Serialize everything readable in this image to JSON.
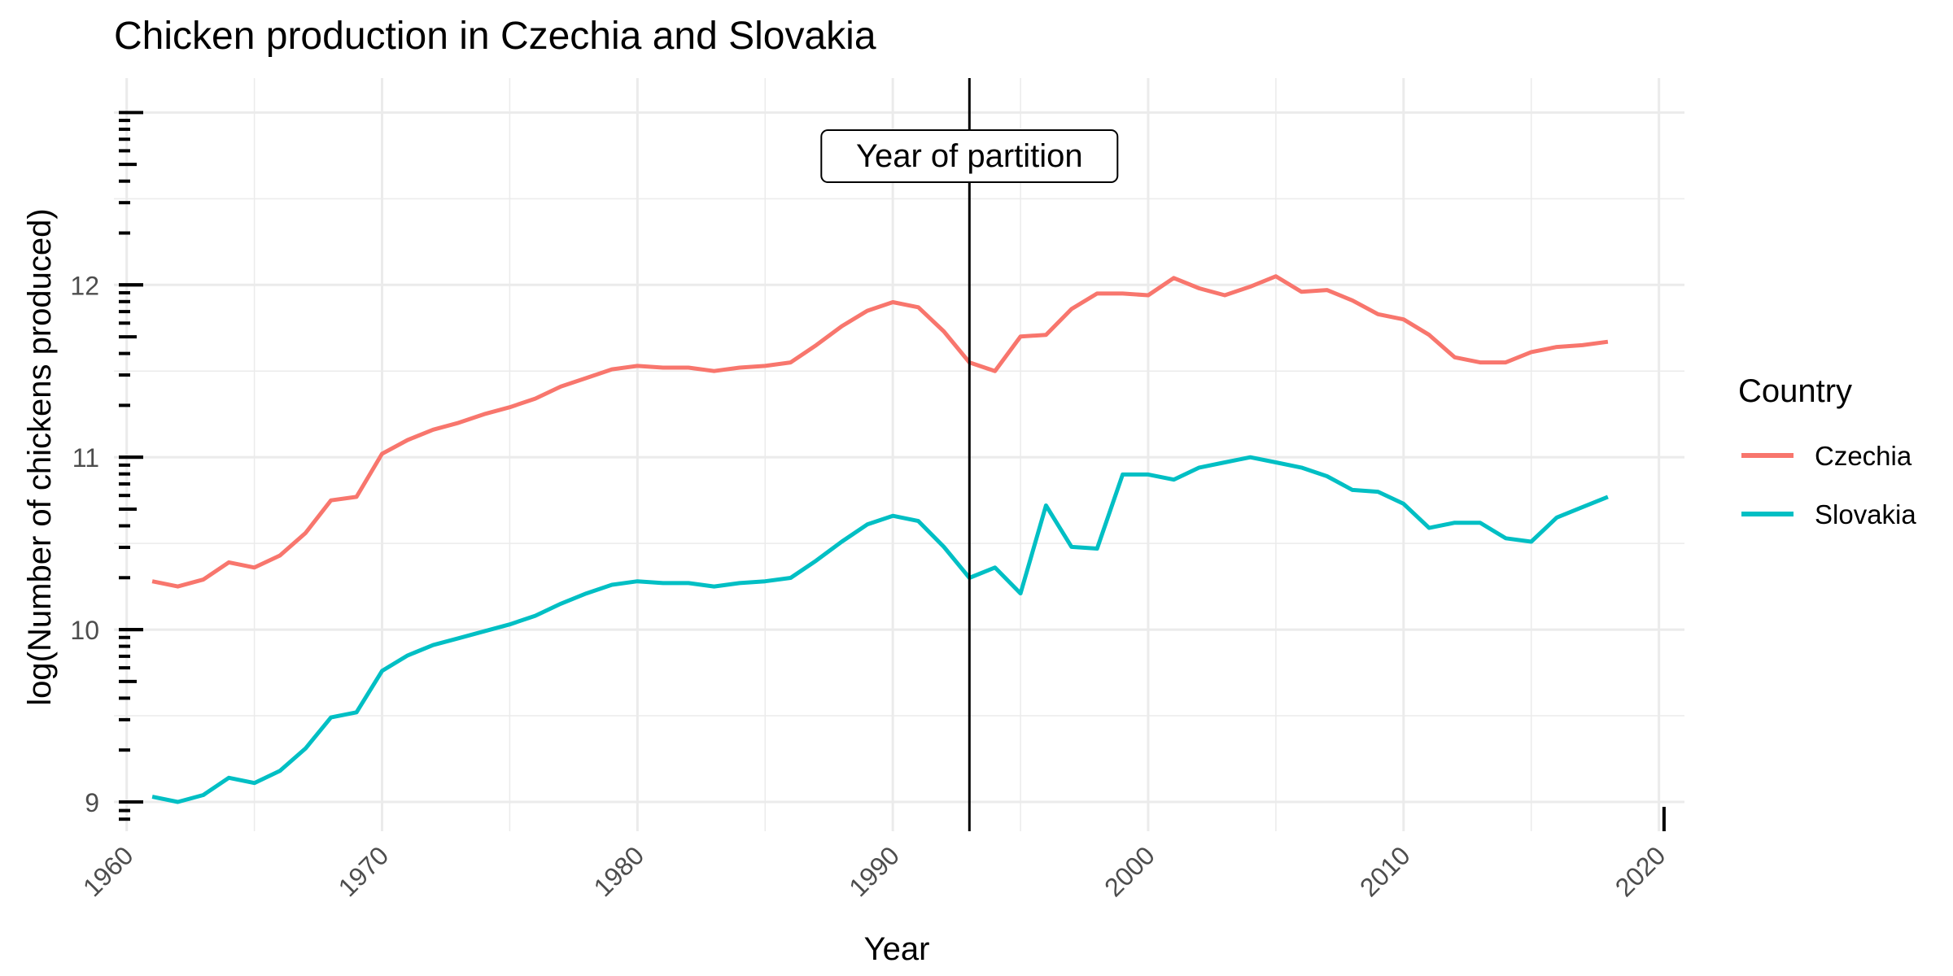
{
  "chart_data": {
    "type": "line",
    "title": "Chicken production in Czechia and Slovakia",
    "xlabel": "Year",
    "ylabel": "log(Number of chickens produced)",
    "xlim": [
      1959.5,
      2021
    ],
    "ylim": [
      8.83,
      13.2
    ],
    "x_ticks": [
      1960,
      1970,
      1980,
      1990,
      2000,
      2010,
      2020
    ],
    "y_ticks": [
      9,
      10,
      11,
      12
    ],
    "grid": true,
    "legend": {
      "title": "Country",
      "placement": "right",
      "entries": [
        "Czechia",
        "Slovakia"
      ]
    },
    "annotation": {
      "text": "Year of partition",
      "x": 1993
    },
    "x": [
      1961,
      1962,
      1963,
      1964,
      1965,
      1966,
      1967,
      1968,
      1969,
      1970,
      1971,
      1972,
      1973,
      1974,
      1975,
      1976,
      1977,
      1978,
      1979,
      1980,
      1981,
      1982,
      1983,
      1984,
      1985,
      1986,
      1987,
      1988,
      1989,
      1990,
      1991,
      1992,
      1993,
      1994,
      1995,
      1996,
      1997,
      1998,
      1999,
      2000,
      2001,
      2002,
      2003,
      2004,
      2005,
      2006,
      2007,
      2008,
      2009,
      2010,
      2011,
      2012,
      2013,
      2014,
      2015,
      2016,
      2017,
      2018
    ],
    "series": [
      {
        "name": "Czechia",
        "color": "#F8766D",
        "values": [
          10.28,
          10.25,
          10.29,
          10.39,
          10.36,
          10.43,
          10.56,
          10.75,
          10.77,
          11.02,
          11.1,
          11.16,
          11.2,
          11.25,
          11.29,
          11.34,
          11.41,
          11.46,
          11.51,
          11.53,
          11.52,
          11.52,
          11.5,
          11.52,
          11.53,
          11.55,
          11.65,
          11.76,
          11.85,
          11.9,
          11.87,
          11.73,
          11.55,
          11.5,
          11.7,
          11.71,
          11.86,
          11.95,
          11.95,
          11.94,
          12.04,
          11.98,
          11.94,
          11.99,
          12.05,
          11.96,
          11.97,
          11.91,
          11.83,
          11.8,
          11.71,
          11.58,
          11.55,
          11.55,
          11.61,
          11.64,
          11.65,
          11.67
        ]
      },
      {
        "name": "Slovakia",
        "color": "#00BFC4",
        "values": [
          9.03,
          9.0,
          9.04,
          9.14,
          9.11,
          9.18,
          9.31,
          9.49,
          9.52,
          9.76,
          9.85,
          9.91,
          9.95,
          9.99,
          10.03,
          10.08,
          10.15,
          10.21,
          10.26,
          10.28,
          10.27,
          10.27,
          10.25,
          10.27,
          10.28,
          10.3,
          10.4,
          10.51,
          10.61,
          10.66,
          10.63,
          10.48,
          10.3,
          10.36,
          10.21,
          10.72,
          10.48,
          10.47,
          10.9,
          10.9,
          10.87,
          10.94,
          10.97,
          11.0,
          10.97,
          10.94,
          10.89,
          10.81,
          10.8,
          10.73,
          10.59,
          10.62,
          10.62,
          10.53,
          10.51,
          10.65,
          10.71,
          10.77
        ]
      }
    ]
  }
}
